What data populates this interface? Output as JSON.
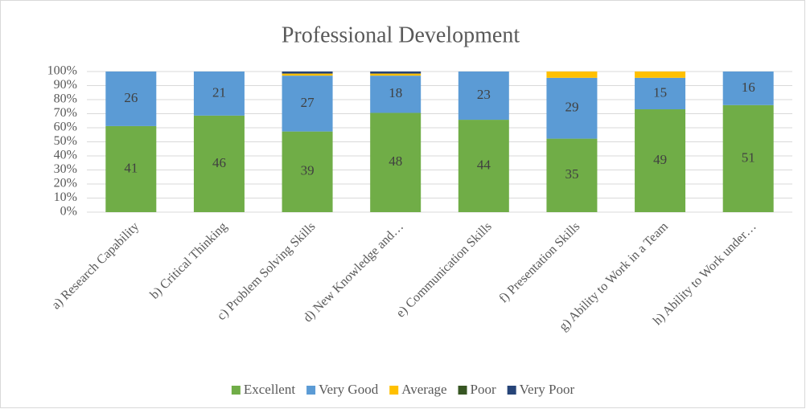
{
  "chart_data": {
    "type": "bar",
    "stacking": "percent",
    "title": "Professional Development",
    "categories": [
      "a) Research Capability",
      "b) Critical Thinking",
      "c) Problem Solving Skills",
      "d) New Knowledge and…",
      "e) Communication Skills",
      "f) Presentation Skills",
      "g) Ability to Work in a Team",
      "h) Ability to Work under…"
    ],
    "series": [
      {
        "name": "Excellent",
        "color": "#70ad47",
        "data_labels": true,
        "values": [
          41,
          46,
          39,
          48,
          44,
          35,
          49,
          51
        ]
      },
      {
        "name": "Very Good",
        "color": "#5b9bd5",
        "data_labels": true,
        "values": [
          26,
          21,
          27,
          18,
          23,
          29,
          15,
          16
        ]
      },
      {
        "name": "Average",
        "color": "#ffc000",
        "data_labels": false,
        "values": [
          0,
          0,
          1,
          1,
          0,
          3,
          3,
          0
        ]
      },
      {
        "name": "Poor",
        "color": "#375623",
        "data_labels": false,
        "values": [
          0,
          0,
          0,
          0,
          0,
          0,
          0,
          0
        ]
      },
      {
        "name": "Very Poor",
        "color": "#264478",
        "data_labels": false,
        "values": [
          0,
          0,
          1,
          1,
          0,
          0,
          0,
          0
        ]
      }
    ],
    "ylim": [
      0,
      100
    ],
    "yticks": [
      {
        "value": 0,
        "label": "0%"
      },
      {
        "value": 10,
        "label": "10%"
      },
      {
        "value": 20,
        "label": "20%"
      },
      {
        "value": 30,
        "label": "30%"
      },
      {
        "value": 40,
        "label": "40%"
      },
      {
        "value": 50,
        "label": "50%"
      },
      {
        "value": 60,
        "label": "60%"
      },
      {
        "value": 70,
        "label": "70%"
      },
      {
        "value": 80,
        "label": "80%"
      },
      {
        "value": 90,
        "label": "90%"
      },
      {
        "value": 100,
        "label": "100%"
      }
    ],
    "grid": true,
    "legend": "bottom"
  }
}
